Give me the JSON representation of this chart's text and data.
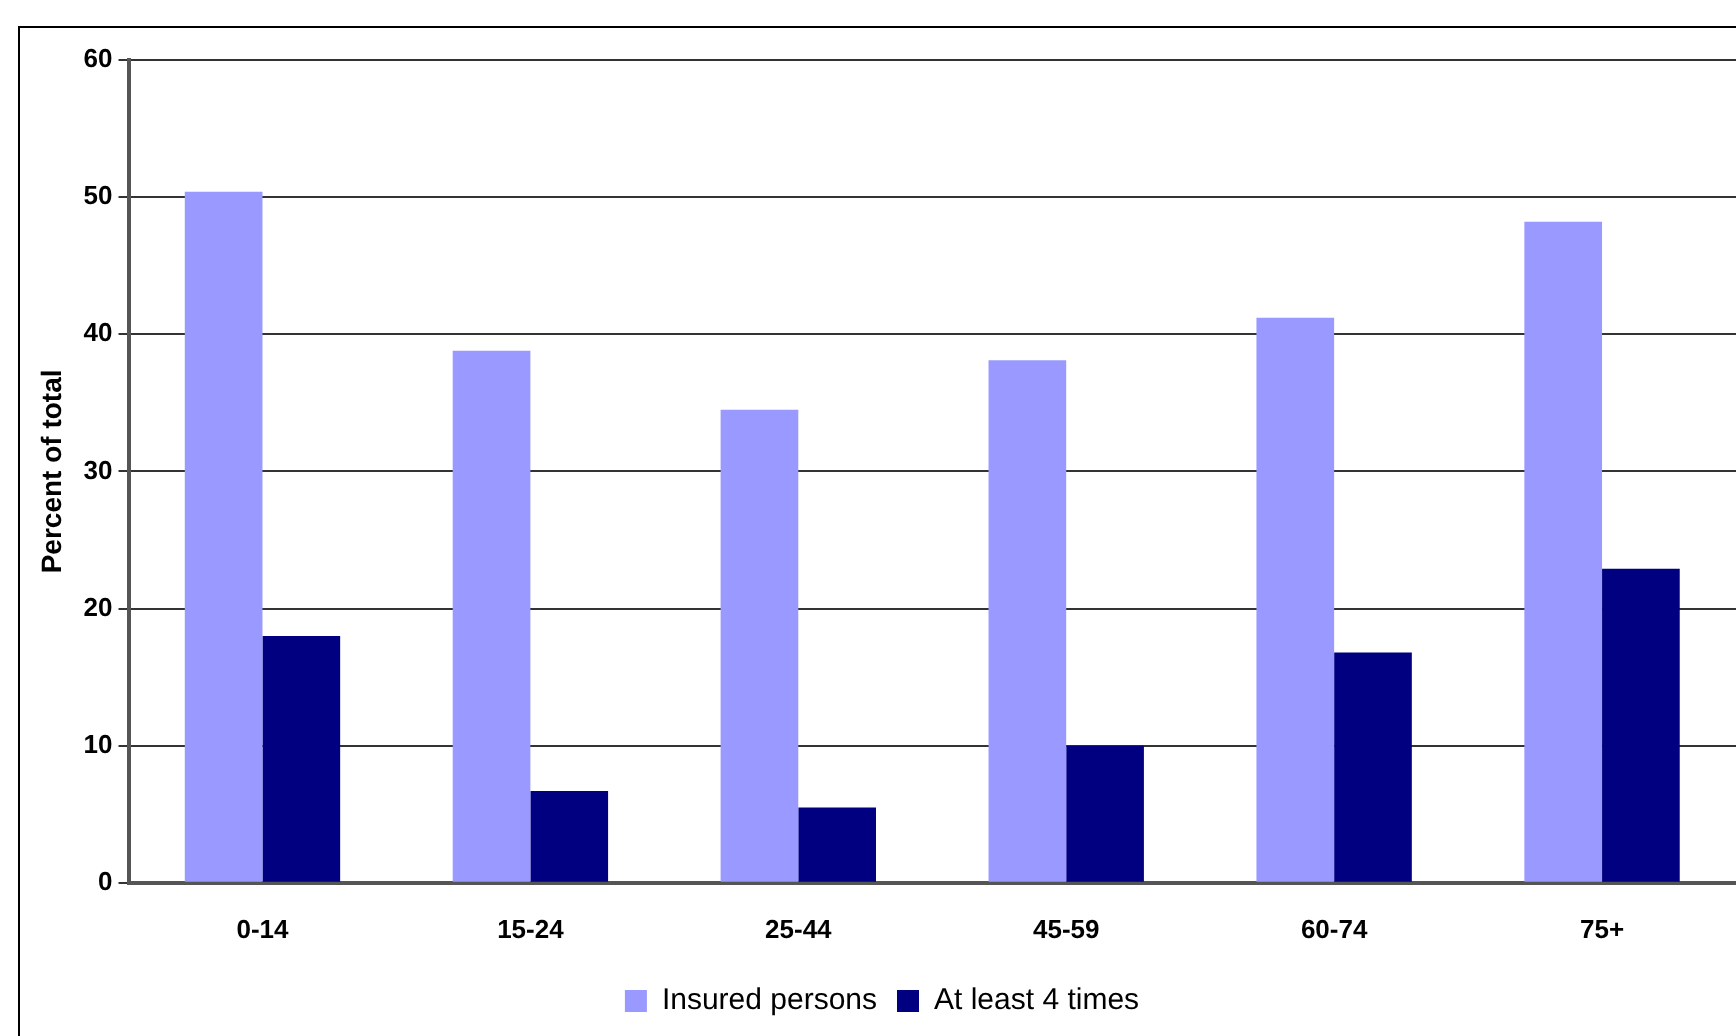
{
  "chart_data": {
    "type": "bar",
    "ylabel": "Percent of total",
    "categories": [
      "0-14",
      "15-24",
      "25-44",
      "45-59",
      "60-74",
      "75+"
    ],
    "series": [
      {
        "name": "Insured persons",
        "color": "#9999ff",
        "values": [
          50.4,
          38.8,
          34.5,
          38.1,
          41.2,
          48.2
        ]
      },
      {
        "name": "At least 4 times",
        "color": "#000080",
        "values": [
          18.0,
          6.7,
          5.5,
          10.0,
          16.8,
          22.9
        ]
      }
    ],
    "ylim": [
      0,
      60
    ],
    "yticks": [
      0,
      10,
      20,
      30,
      40,
      50,
      60
    ],
    "grid": "y",
    "legend": "bottom"
  }
}
